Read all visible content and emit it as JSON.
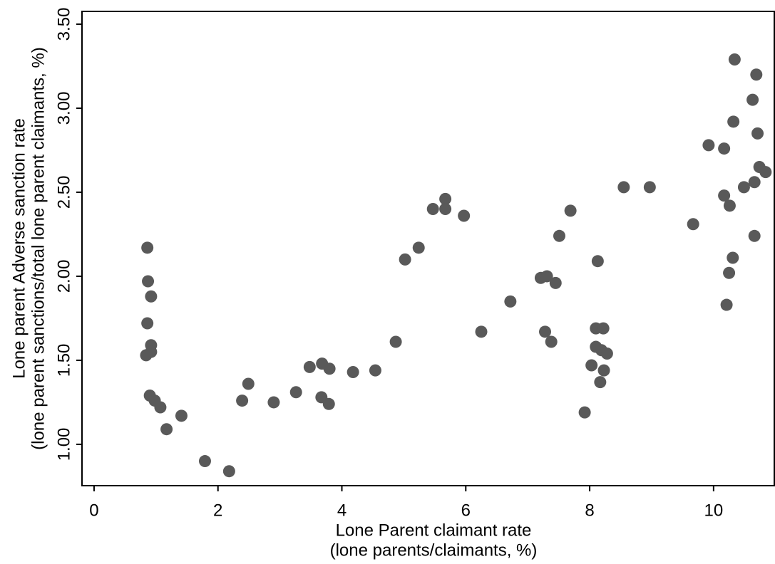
{
  "chart_data": {
    "type": "scatter",
    "x_label": [
      "Lone Parent claimant rate",
      "(lone parents/claimants, %)"
    ],
    "y_label": [
      "Lone parent Adverse sanction rate",
      "(lone parent sanctions/total lone parent claimants, %)"
    ],
    "color": "#595959",
    "x": [
      0.86,
      0.87,
      0.92,
      0.86,
      0.92,
      0.92,
      0.84,
      0.9,
      0.98,
      1.07,
      1.17,
      1.41,
      1.79,
      2.18,
      2.39,
      2.49,
      2.9,
      3.26,
      3.48,
      3.68,
      3.67,
      3.8,
      3.79,
      4.18,
      4.54,
      4.87,
      5.02,
      5.24,
      5.47,
      5.67,
      5.67,
      5.97,
      6.25,
      6.72,
      7.21,
      7.31,
      7.28,
      7.38,
      7.45,
      7.51,
      7.69,
      7.92,
      8.03,
      8.1,
      8.22,
      8.1,
      8.19,
      8.28,
      8.13,
      8.23,
      8.17,
      8.55,
      8.97,
      9.67,
      9.92,
      10.17,
      10.17,
      10.26,
      10.21,
      10.25,
      10.31,
      10.32,
      10.34,
      10.49,
      10.63,
      10.66,
      10.66,
      10.69,
      10.71,
      10.74,
      10.84
    ],
    "values": [
      2.17,
      1.97,
      1.88,
      1.72,
      1.59,
      1.55,
      1.53,
      1.29,
      1.26,
      1.22,
      1.09,
      1.17,
      0.9,
      0.84,
      1.26,
      1.36,
      1.25,
      1.31,
      1.46,
      1.48,
      1.28,
      1.45,
      1.24,
      1.43,
      1.44,
      1.61,
      2.1,
      2.17,
      2.4,
      2.46,
      2.4,
      2.36,
      1.67,
      1.85,
      1.99,
      2.0,
      1.67,
      1.61,
      1.96,
      2.24,
      2.39,
      1.19,
      1.47,
      1.69,
      1.69,
      1.58,
      1.56,
      1.54,
      2.09,
      1.44,
      1.37,
      2.53,
      2.53,
      2.31,
      2.78,
      2.76,
      2.48,
      2.42,
      1.83,
      2.02,
      2.11,
      2.92,
      3.29,
      2.53,
      3.05,
      2.56,
      2.24,
      3.2,
      2.85,
      2.65,
      2.62
    ],
    "xlim": [
      -0.195,
      10.98
    ],
    "ylim": [
      0.754,
      3.576
    ],
    "xticks": [
      0,
      2,
      4,
      6,
      8,
      10
    ],
    "yticks": [
      {
        "value": 1,
        "label": "1.00"
      },
      {
        "value": 1.5,
        "label": "1.50"
      },
      {
        "value": 2,
        "label": "2.00"
      },
      {
        "value": 2.5,
        "label": "2.50"
      },
      {
        "value": 3,
        "label": "3.00"
      },
      {
        "value": 3.5,
        "label": "3.50"
      }
    ],
    "grid": false
  }
}
